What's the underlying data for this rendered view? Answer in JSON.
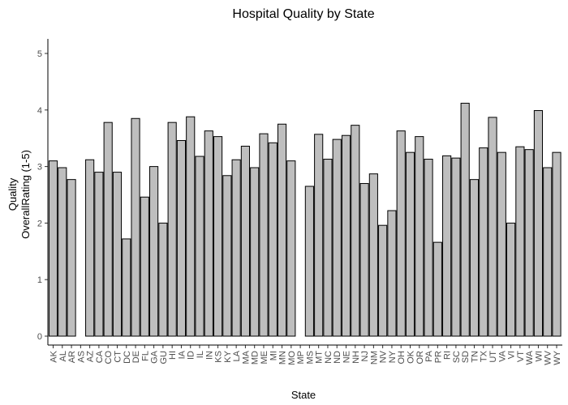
{
  "chart_data": {
    "type": "bar",
    "title": "Hospital Quality by State",
    "xlabel": "State",
    "ylabel_lines": [
      "Quality",
      "OverallRating (1-5)"
    ],
    "ylim": [
      0,
      5.25
    ],
    "yticks": [
      0,
      1,
      2,
      3,
      4,
      5
    ],
    "grid": false,
    "categories": [
      "AK",
      "AL",
      "AR",
      "AS",
      "AZ",
      "CA",
      "CO",
      "CT",
      "DC",
      "DE",
      "FL",
      "GA",
      "GU",
      "HI",
      "IA",
      "ID",
      "IL",
      "IN",
      "KS",
      "KY",
      "LA",
      "MA",
      "MD",
      "ME",
      "MI",
      "MN",
      "MO",
      "MP",
      "MS",
      "MT",
      "NC",
      "ND",
      "NE",
      "NH",
      "NJ",
      "NM",
      "NV",
      "NY",
      "OH",
      "OK",
      "OR",
      "PA",
      "PR",
      "RI",
      "SC",
      "SD",
      "TN",
      "TX",
      "UT",
      "VA",
      "VI",
      "VT",
      "WA",
      "WI",
      "WV",
      "WY"
    ],
    "values": [
      3.1,
      2.98,
      2.77,
      null,
      3.12,
      2.9,
      3.78,
      2.9,
      1.72,
      3.85,
      2.46,
      3.0,
      2.0,
      3.78,
      3.46,
      3.88,
      3.18,
      3.63,
      3.53,
      2.84,
      3.12,
      3.36,
      2.98,
      3.58,
      3.42,
      3.75,
      3.1,
      null,
      2.65,
      3.57,
      3.13,
      3.48,
      3.55,
      3.73,
      2.7,
      2.87,
      1.96,
      2.22,
      3.63,
      3.25,
      3.53,
      3.13,
      1.66,
      3.19,
      3.15,
      4.12,
      2.77,
      3.33,
      3.87,
      3.25,
      2.0,
      3.35,
      3.3,
      3.99,
      2.98,
      3.25
    ]
  },
  "colors": {
    "bar_fill": "#bebebe",
    "bar_stroke": "#000000",
    "background": "#ffffff"
  }
}
